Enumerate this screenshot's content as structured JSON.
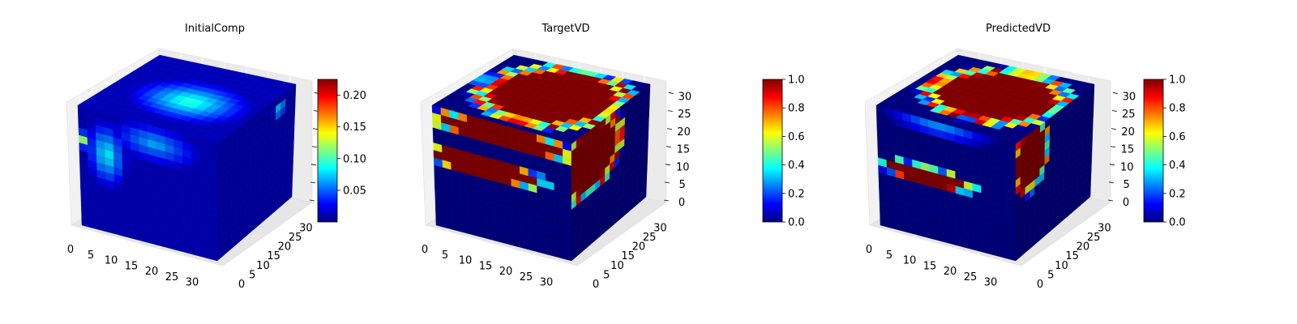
{
  "figure": {
    "colormap": "jet",
    "colormap_stops": [
      "#00007f",
      "#0000ff",
      "#007fff",
      "#00ffff",
      "#7fff7f",
      "#ffff00",
      "#ff7f00",
      "#ff0000",
      "#7f0000"
    ]
  },
  "chart_data": [
    {
      "type": "voxel-3d",
      "title": "InitialComp",
      "grid_size": [
        32,
        32,
        32
      ],
      "x_ticks": [
        "0",
        "5",
        "10",
        "15",
        "20",
        "25",
        "30"
      ],
      "y_ticks": [
        "0",
        "5",
        "10",
        "15",
        "20",
        "25",
        "30"
      ],
      "z_ticks": [],
      "colorbar": {
        "min": 0.0,
        "max": 0.225,
        "ticks": [
          "0.05",
          "0.10",
          "0.15",
          "0.20"
        ],
        "tick_values": [
          0.05,
          0.1,
          0.15,
          0.2
        ]
      },
      "features": [
        {
          "face": "top",
          "cx": 0.55,
          "cy": 0.45,
          "rx": 0.42,
          "ry": 0.32,
          "value": 0.1,
          "ring": false
        },
        {
          "face": "front",
          "cx": 0.2,
          "cy": 0.35,
          "rx": 0.16,
          "ry": 0.3,
          "value": 0.09,
          "ring": false
        },
        {
          "face": "front",
          "cx": 0.55,
          "cy": 0.15,
          "rx": 0.35,
          "ry": 0.18,
          "value": 0.07,
          "ring": false
        },
        {
          "face": "front",
          "cx": 0.02,
          "cy": 0.28,
          "rx": 0.04,
          "ry": 0.08,
          "value": 0.16,
          "ring": false
        },
        {
          "face": "side",
          "cx": 0.8,
          "cy": 0.12,
          "rx": 0.1,
          "ry": 0.06,
          "value": 0.13,
          "ring": false
        }
      ]
    },
    {
      "type": "voxel-3d",
      "title": "TargetVD",
      "grid_size": [
        32,
        32,
        32
      ],
      "x_ticks": [
        "0",
        "5",
        "10",
        "15",
        "20",
        "25",
        "30"
      ],
      "y_ticks": [
        "0",
        "5",
        "10",
        "15",
        "20",
        "25",
        "30"
      ],
      "z_ticks": [
        "0",
        "5",
        "10",
        "15",
        "20",
        "25",
        "30"
      ],
      "colorbar": {
        "min": 0.0,
        "max": 1.0,
        "ticks": [
          "0.0",
          "0.2",
          "0.4",
          "0.6",
          "0.8",
          "1.0"
        ],
        "tick_values": [
          0.0,
          0.2,
          0.4,
          0.6,
          0.8,
          1.0
        ]
      },
      "features": [
        {
          "face": "top",
          "cx": 0.55,
          "cy": 0.55,
          "rx": 0.47,
          "ry": 0.45,
          "value": 1.0,
          "ring": true
        },
        {
          "face": "front",
          "cx": 0.5,
          "cy": 0.1,
          "rx": 0.52,
          "ry": 0.1,
          "value": 1.0,
          "ring": true
        },
        {
          "face": "front",
          "cx": 0.35,
          "cy": 0.4,
          "rx": 0.45,
          "ry": 0.1,
          "value": 1.0,
          "ring": true
        },
        {
          "face": "side",
          "cx": 0.25,
          "cy": 0.25,
          "rx": 0.4,
          "ry": 0.3,
          "value": 1.0,
          "ring": true
        }
      ]
    },
    {
      "type": "voxel-3d",
      "title": "PredictedVD",
      "grid_size": [
        32,
        32,
        32
      ],
      "x_ticks": [
        "0",
        "5",
        "10",
        "15",
        "20",
        "25",
        "30"
      ],
      "y_ticks": [
        "0",
        "5",
        "10",
        "15",
        "20",
        "25",
        "30"
      ],
      "z_ticks": [
        "0",
        "5",
        "10",
        "15",
        "20",
        "25",
        "30"
      ],
      "colorbar": {
        "min": 0.0,
        "max": 1.0,
        "ticks": [
          "0.0",
          "0.2",
          "0.4",
          "0.6",
          "0.8",
          "1.0"
        ],
        "tick_values": [
          0.0,
          0.2,
          0.4,
          0.6,
          0.8,
          1.0
        ]
      },
      "features": [
        {
          "face": "top",
          "cx": 0.55,
          "cy": 0.55,
          "rx": 0.45,
          "ry": 0.4,
          "value": 1.0,
          "ring": true
        },
        {
          "face": "front",
          "cx": 0.45,
          "cy": 0.05,
          "rx": 0.45,
          "ry": 0.08,
          "value": 0.35,
          "ring": false
        },
        {
          "face": "front",
          "cx": 0.35,
          "cy": 0.48,
          "rx": 0.34,
          "ry": 0.08,
          "value": 1.0,
          "ring": true
        },
        {
          "face": "side",
          "cx": 0.2,
          "cy": 0.22,
          "rx": 0.22,
          "ry": 0.28,
          "value": 1.0,
          "ring": true
        }
      ]
    }
  ]
}
